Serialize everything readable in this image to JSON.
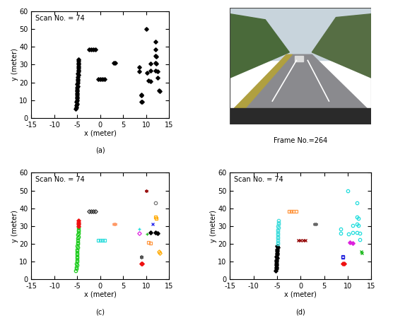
{
  "chart_data": [
    {
      "type": "scatter",
      "caption": "(a)",
      "annotations": [
        "Scan No. = 74"
      ],
      "x_label": "x (meter)",
      "y_label": "y (meter)",
      "xlim": [
        -15,
        15
      ],
      "xticks": [
        -15,
        -10,
        -5,
        0,
        5,
        10,
        15
      ],
      "ylim": [
        0,
        60
      ],
      "yticks": [
        0,
        10,
        20,
        30,
        40,
        50,
        60
      ],
      "series": [
        {
          "color": "#000000",
          "marker": "diamond",
          "x": [
            -5.3,
            -5.2,
            -5.2,
            -5.1,
            -5.2,
            -5.1,
            -5.1,
            -5.0,
            -5.1,
            -5.0,
            -5.0,
            -5.0,
            -5.0,
            -4.9,
            -5.0,
            -4.9,
            -4.9,
            -4.9,
            -4.9,
            -4.8,
            -4.9,
            -4.8,
            -4.8,
            -4.8,
            -4.7,
            -4.8,
            -4.7,
            -4.7,
            -4.7,
            -2.5,
            -2.0,
            -1.5,
            -1.0,
            -0.5,
            0.0,
            0.5,
            1.0,
            3.0,
            3.3,
            8.5,
            8.5,
            9.0,
            9.0,
            9.0,
            9.2,
            10.0,
            10.2,
            10.5,
            11.0,
            11.0,
            11.0,
            12.0,
            12.0,
            12.0,
            12.2,
            12.0,
            12.2,
            12.0,
            12.5,
            12.5,
            12.8,
            13.0
          ],
          "y": [
            5,
            6,
            7,
            8,
            9,
            10,
            11,
            12,
            13,
            14,
            15,
            16,
            17,
            18,
            19,
            20,
            21,
            22,
            23,
            24,
            25,
            26,
            27,
            28,
            29,
            30,
            31,
            32,
            33,
            38.5,
            38.5,
            38.5,
            38.5,
            22,
            22,
            22,
            22,
            31,
            31,
            28.5,
            26,
            13,
            12.5,
            9,
            9,
            50,
            25.5,
            21,
            20.5,
            30.5,
            26.5,
            43,
            38.5,
            35,
            34.5,
            31,
            30.5,
            26.5,
            26,
            22.5,
            15.5,
            15
          ]
        }
      ]
    },
    {
      "type": "scatter",
      "caption": "(c)",
      "annotations": [
        "Scan No. = 74"
      ],
      "x_label": "x (meter)",
      "y_label": "y (meter)",
      "xlim": [
        -15,
        15
      ],
      "xticks": [
        -15,
        -10,
        -5,
        0,
        5,
        10,
        15
      ],
      "ylim": [
        0,
        60
      ],
      "yticks": [
        0,
        10,
        20,
        30,
        40,
        50,
        60
      ],
      "series": [
        {
          "color": "#22cc22",
          "marker": "circle",
          "x": [
            -5.3,
            -5.2,
            -5.2,
            -5.1,
            -5.2,
            -5.1,
            -5.1,
            -5.0,
            -5.1,
            -5.0,
            -5.0,
            -5.0,
            -5.0,
            -4.9,
            -5.0,
            -4.9,
            -4.9,
            -4.9,
            -4.9,
            -4.8,
            -4.9,
            -4.8,
            -4.8,
            -4.8,
            -4.7
          ],
          "y": [
            5,
            6,
            7,
            8,
            9,
            10,
            11,
            12,
            13,
            14,
            15,
            16,
            17,
            18,
            19,
            20,
            21,
            22,
            23,
            24,
            25,
            26,
            27,
            28,
            29
          ]
        },
        {
          "color": "#ee1111",
          "marker": "diamond",
          "x": [
            -4.8,
            -4.7,
            -4.7,
            -4.7
          ],
          "y": [
            30,
            31,
            32,
            33
          ]
        },
        {
          "color": "#333333",
          "marker": "open_diamond",
          "x": [
            -2.5,
            -2.0,
            -1.5,
            -1.0
          ],
          "y": [
            38.5,
            38.5,
            38.5,
            38.5
          ]
        },
        {
          "color": "#33dddd",
          "marker": "square",
          "x": [
            -0.5,
            0.0,
            0.5,
            1.0
          ],
          "y": [
            22,
            22,
            22,
            22
          ]
        },
        {
          "color": "#ff9966",
          "marker": "asterisk",
          "x": [
            3.0,
            3.3
          ],
          "y": [
            31,
            31
          ]
        },
        {
          "color": "#991111",
          "marker": "asterisk",
          "x": [
            10.0
          ],
          "y": [
            50
          ]
        },
        {
          "color": "#777777",
          "marker": "circle",
          "x": [
            12.0
          ],
          "y": [
            43
          ]
        },
        {
          "color": "#ffaa00",
          "marker": "square",
          "x": [
            12.0,
            12.2
          ],
          "y": [
            35,
            34.5
          ]
        },
        {
          "color": "#3333ee",
          "marker": "x",
          "x": [
            11.5
          ],
          "y": [
            31
          ]
        },
        {
          "color": "#22dddd",
          "marker": "plus",
          "x": [
            8.5
          ],
          "y": [
            28.5
          ]
        },
        {
          "color": "#dd22dd",
          "marker": "open_diamond",
          "x": [
            8.5
          ],
          "y": [
            26
          ]
        },
        {
          "color": "#22bb22",
          "marker": "plus",
          "x": [
            10.2
          ],
          "y": [
            25.5
          ]
        },
        {
          "color": "#000000",
          "marker": "diamond",
          "x": [
            11.0,
            12.0,
            12.5
          ],
          "y": [
            26.5,
            26.5,
            26
          ]
        },
        {
          "color": "#ff9944",
          "marker": "square",
          "x": [
            10.5,
            11.0
          ],
          "y": [
            21,
            20.5
          ]
        },
        {
          "color": "#ffaa00",
          "marker": "open_diamond",
          "x": [
            12.8,
            13.0
          ],
          "y": [
            15.5,
            15
          ]
        },
        {
          "color": "#555555",
          "marker": "asterisk",
          "x": [
            9.0,
            9.0
          ],
          "y": [
            13,
            12.5
          ]
        },
        {
          "color": "#ee1111",
          "marker": "diamond",
          "x": [
            9.0,
            9.2
          ],
          "y": [
            9,
            9
          ]
        }
      ]
    },
    {
      "type": "scatter",
      "caption": "(d)",
      "annotations": [
        "Scan No. = 74"
      ],
      "x_label": "x (meter)",
      "y_label": "y (meter)",
      "xlim": [
        -15,
        15
      ],
      "xticks": [
        -15,
        -10,
        -5,
        0,
        5,
        10,
        15
      ],
      "ylim": [
        0,
        60
      ],
      "yticks": [
        0,
        10,
        20,
        30,
        40,
        50,
        60
      ],
      "series": [
        {
          "color": "#000000",
          "marker": "diamond",
          "x": [
            -5.3,
            -5.2,
            -5.2,
            -5.1,
            -5.2,
            -5.1,
            -5.1,
            -5.0,
            -5.1,
            -5.0,
            -5.0,
            -5.0,
            -5.0,
            -4.9,
            -5.0
          ],
          "y": [
            5,
            6,
            7,
            8,
            9,
            10,
            11,
            12,
            13,
            14,
            15,
            16,
            17,
            18,
            19
          ]
        },
        {
          "color": "#44dddd",
          "marker": "circle",
          "x": [
            -4.9,
            -4.9,
            -4.9,
            -4.9,
            -4.8,
            -4.9,
            -4.8,
            -4.8,
            -4.8,
            -4.7,
            -4.8,
            -4.7,
            -4.7,
            -4.7
          ],
          "y": [
            20,
            21,
            22,
            23,
            24,
            25,
            26,
            27,
            28,
            29,
            30,
            31,
            32,
            33
          ]
        },
        {
          "color": "#ff9944",
          "marker": "square",
          "x": [
            -2.5,
            -2.0,
            -1.5,
            -1.0
          ],
          "y": [
            38.5,
            38.5,
            38.5,
            38.5
          ]
        },
        {
          "color": "#991111",
          "marker": "x",
          "x": [
            -0.5,
            0.0,
            0.5,
            1.0
          ],
          "y": [
            22,
            22,
            22,
            22
          ]
        },
        {
          "color": "#666666",
          "marker": "asterisk",
          "x": [
            3.0,
            3.3
          ],
          "y": [
            31,
            31
          ]
        },
        {
          "color": "#22dddd",
          "marker": "circle",
          "x": [
            8.5,
            8.5,
            10.0,
            10.2,
            11.0,
            11.0,
            12.0,
            12.0,
            12.2,
            12.0,
            12.2,
            12.0,
            12.5,
            12.5
          ],
          "y": [
            28.5,
            26,
            50,
            25.5,
            26.5,
            30.5,
            43,
            35,
            34.5,
            31,
            30.5,
            26.5,
            26,
            22.5
          ]
        },
        {
          "color": "#dd22dd",
          "marker": "diamond",
          "x": [
            10.5,
            11.0
          ],
          "y": [
            21,
            20.5
          ]
        },
        {
          "color": "#22bb22",
          "marker": "x",
          "x": [
            12.8,
            13.0
          ],
          "y": [
            15.5,
            15
          ]
        },
        {
          "color": "#2222dd",
          "marker": "square",
          "x": [
            9.0,
            9.0
          ],
          "y": [
            13,
            12.5
          ]
        },
        {
          "color": "#ee1111",
          "marker": "diamond",
          "x": [
            9.0,
            9.2
          ],
          "y": [
            9,
            9
          ]
        }
      ]
    }
  ],
  "photo": {
    "caption": "Frame No.=264"
  }
}
